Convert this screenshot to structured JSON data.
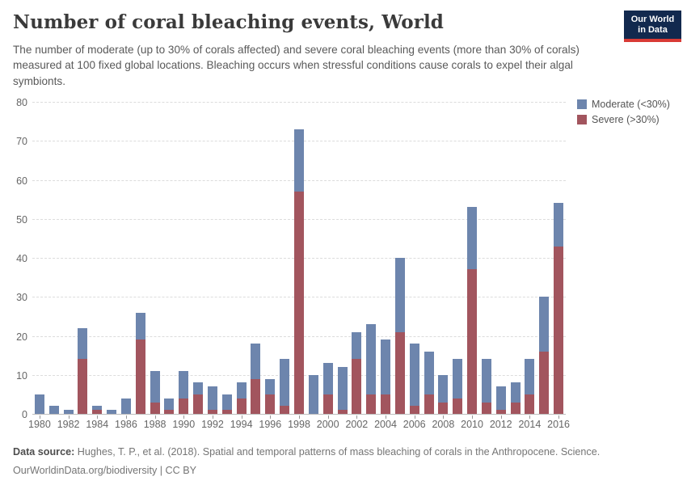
{
  "header": {
    "title": "Number of coral bleaching events, World",
    "subtitle": "The number of moderate (up to 30% of corals affected) and severe coral bleaching events (more than 30% of corals) measured at 100 fixed global locations. Bleaching occurs when stressful conditions cause corals to expel their algal symbionts.",
    "logo": {
      "line1": "Our World",
      "line2": "in Data",
      "bg_color": "#12294e",
      "strip_color": "#d93a35"
    }
  },
  "legend": [
    {
      "label": "Moderate (<30%)",
      "color": "#6d85ad"
    },
    {
      "label": "Severe (>30%)",
      "color": "#a2555e"
    }
  ],
  "chart_data": {
    "type": "bar",
    "stacked": true,
    "x": [
      1980,
      1981,
      1982,
      1983,
      1984,
      1985,
      1986,
      1987,
      1988,
      1989,
      1990,
      1991,
      1992,
      1993,
      1994,
      1995,
      1996,
      1997,
      1998,
      1999,
      2000,
      2001,
      2002,
      2003,
      2004,
      2005,
      2006,
      2007,
      2008,
      2009,
      2010,
      2011,
      2012,
      2013,
      2014,
      2015,
      2016
    ],
    "series": [
      {
        "name": "Severe (>30%)",
        "color": "#a2555e",
        "values": [
          0,
          0,
          0,
          14,
          1,
          0,
          0,
          19,
          3,
          1,
          4,
          5,
          1,
          1,
          4,
          9,
          5,
          2,
          57,
          0,
          5,
          1,
          14,
          5,
          5,
          21,
          2,
          5,
          3,
          4,
          37,
          3,
          1,
          3,
          5,
          16,
          43
        ]
      },
      {
        "name": "Moderate (<30%)",
        "color": "#6d85ad",
        "values": [
          5,
          2,
          1,
          8,
          1,
          1,
          4,
          7,
          8,
          3,
          7,
          3,
          6,
          4,
          4,
          9,
          4,
          12,
          16,
          10,
          8,
          11,
          7,
          18,
          14,
          19,
          16,
          11,
          7,
          10,
          16,
          11,
          6,
          5,
          9,
          14,
          11
        ]
      }
    ],
    "title": "Number of coral bleaching events, World",
    "xlabel": "",
    "ylabel": "",
    "ylim": [
      0,
      80
    ],
    "yticks": [
      0,
      10,
      20,
      30,
      40,
      50,
      60,
      70,
      80
    ],
    "xtick_labels": [
      1980,
      1982,
      1984,
      1986,
      1988,
      1990,
      1992,
      1994,
      1996,
      1998,
      2000,
      2002,
      2004,
      2006,
      2008,
      2010,
      2012,
      2014,
      2016
    ],
    "grid": "horizontal-dashed",
    "legend_position": "top-right"
  },
  "footer": {
    "source_label": "Data source:",
    "source_text": " Hughes, T. P., et al. (2018). Spatial and temporal patterns of mass bleaching of corals in the Anthropocene. Science.",
    "link": "OurWorldinData.org/biodiversity",
    "license": " | CC BY"
  }
}
